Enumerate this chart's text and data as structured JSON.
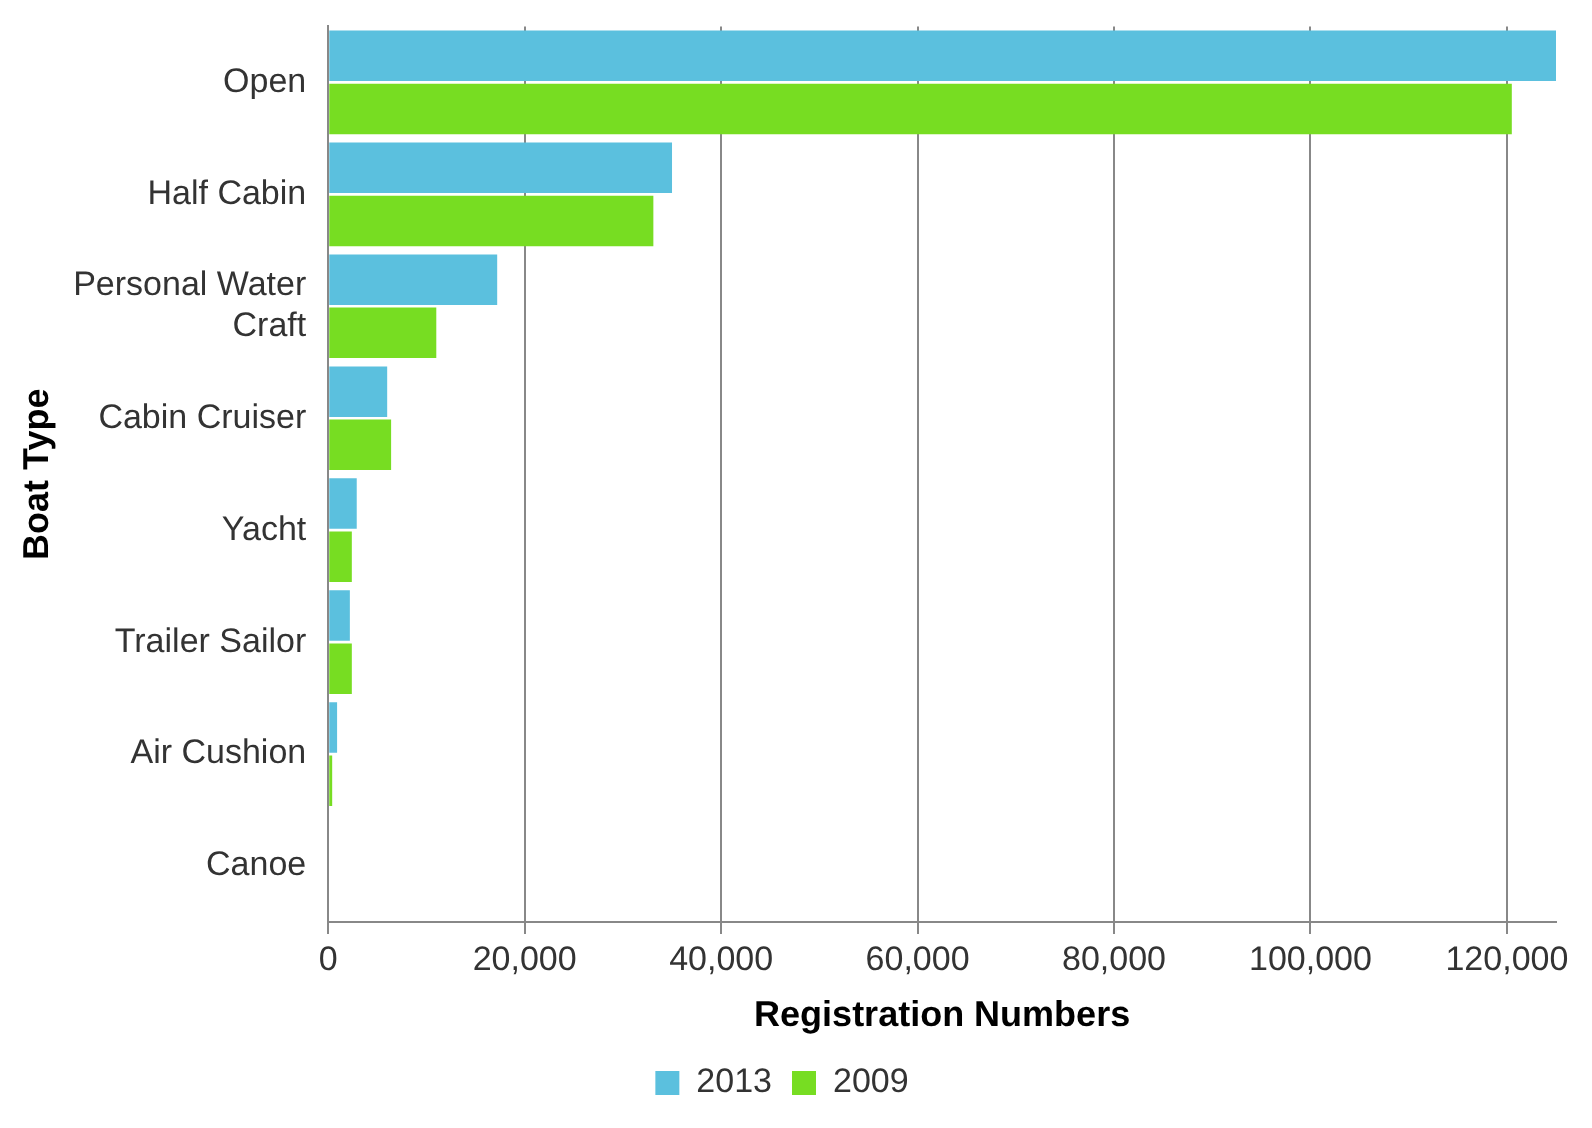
{
  "chart_data": {
    "type": "bar",
    "orientation": "horizontal",
    "xlabel": "Registration Numbers",
    "ylabel": "Boat Type",
    "categories": [
      "Open",
      "Half Cabin",
      "Personal Water Craft",
      "Cabin Cruiser",
      "Yacht",
      "Trailer Sailor",
      "Air Cushion",
      "Canoe"
    ],
    "series": [
      {
        "name": "2013",
        "color": "#5bc0de",
        "values": [
          125000,
          35000,
          17200,
          6000,
          2900,
          2200,
          900,
          0
        ]
      },
      {
        "name": "2009",
        "color": "#77dd22",
        "values": [
          120500,
          33100,
          11000,
          6400,
          2400,
          2400,
          400,
          0
        ]
      }
    ],
    "xlim": [
      0,
      125000
    ],
    "xticks": [
      {
        "value": 0,
        "label": "0"
      },
      {
        "value": 20000,
        "label": "20,000"
      },
      {
        "value": 40000,
        "label": "40,000"
      },
      {
        "value": 60000,
        "label": "60,000"
      },
      {
        "value": 80000,
        "label": "80,000"
      },
      {
        "value": 100000,
        "label": "100,000"
      },
      {
        "value": 120000,
        "label": "120,000"
      }
    ],
    "grid": "x",
    "legend": "bottom"
  }
}
